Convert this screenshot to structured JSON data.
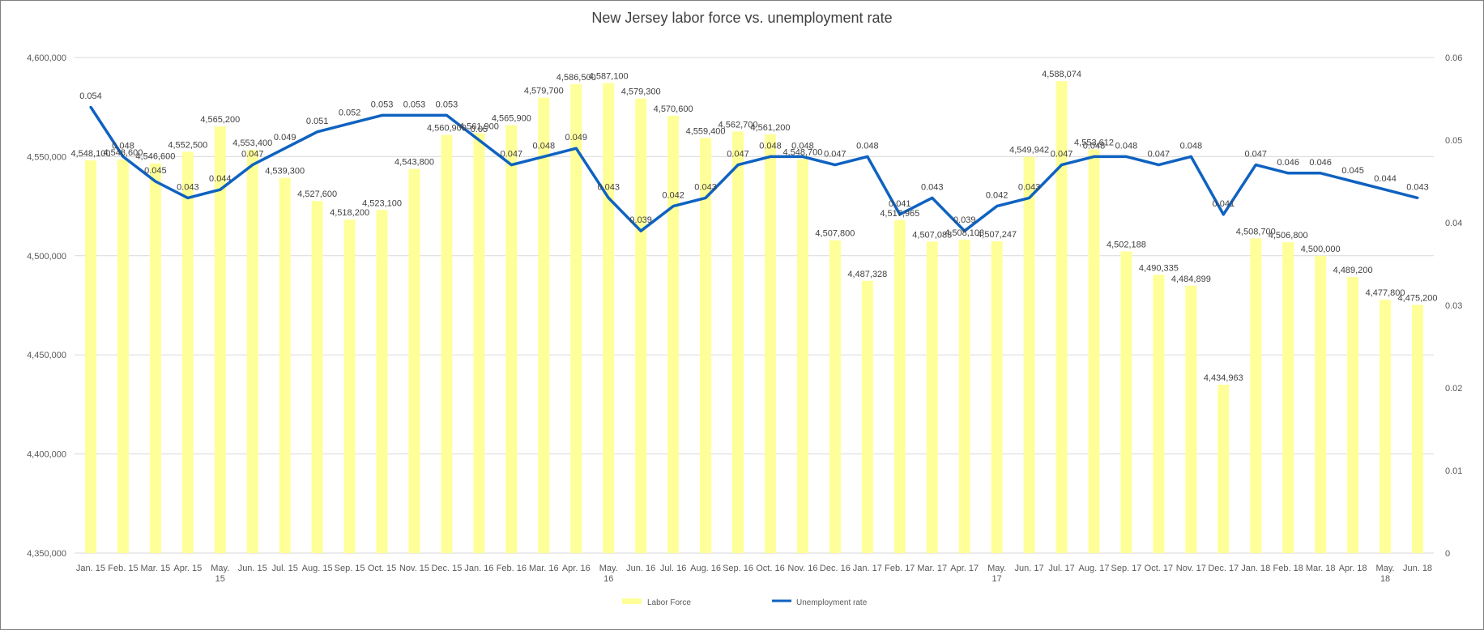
{
  "chart_data": {
    "type": "bar",
    "title": "New Jersey labor force vs. unemployment rate",
    "categories": [
      "Jan. 15",
      "Feb. 15",
      "Mar. 15",
      "Apr. 15",
      "May. 15",
      "Jun. 15",
      "Jul. 15",
      "Aug. 15",
      "Sep. 15",
      "Oct. 15",
      "Nov. 15",
      "Dec. 15",
      "Jan. 16",
      "Feb. 16",
      "Mar. 16",
      "Apr. 16",
      "May. 16",
      "Jun. 16",
      "Jul. 16",
      "Aug. 16",
      "Sep. 16",
      "Oct. 16",
      "Nov. 16",
      "Dec. 16",
      "Jan. 17",
      "Feb. 17",
      "Mar. 17",
      "Apr. 17",
      "May. 17",
      "Jun. 17",
      "Jul. 17",
      "Aug. 17",
      "Sep. 17",
      "Oct. 17",
      "Nov. 17",
      "Dec. 17",
      "Jan. 18",
      "Feb. 18",
      "Mar. 18",
      "Apr. 18",
      "May. 18",
      "Jun. 18"
    ],
    "series": [
      {
        "name": "Labor Force",
        "type": "bar",
        "axis": "left",
        "color": "#FFFF99",
        "values": [
          4548100,
          4548600,
          4546600,
          4552500,
          4565200,
          4553400,
          4539300,
          4527600,
          4518200,
          4523100,
          4543800,
          4560900,
          4561900,
          4565900,
          4579700,
          4586500,
          4587100,
          4579300,
          4570600,
          4559400,
          4562700,
          4561200,
          4548700,
          4507800,
          4487328,
          4517965,
          4507083,
          4508103,
          4507247,
          4549942,
          4588074,
          4553612,
          4502188,
          4490335,
          4484899,
          4434963,
          4508700,
          4506800,
          4500000,
          4489200,
          4477800,
          4475200
        ],
        "labels": [
          "4,548,100",
          "4,548,600",
          "4,546,600",
          "4,552,500",
          "4,565,200",
          "4,553,400",
          "4,539,300",
          "4,527,600",
          "4,518,200",
          "4,523,100",
          "4,543,800",
          "4,560,900",
          "4,561,900",
          "4,565,900",
          "4,579,700",
          "4,586,500",
          "4,587,100",
          "4,579,300",
          "4,570,600",
          "4,559,400",
          "4,562,700",
          "4,561,200",
          "4,548,700",
          "4,507,800",
          "4,487,328",
          "4,517,965",
          "4,507,083",
          "4,508,103",
          "4,507,247",
          "4,549,942",
          "4,588,074",
          "4,553,612",
          "4,502,188",
          "4,490,335",
          "4,484,899",
          "4,434,963",
          "4,508,700",
          "4,506,800",
          "4,500,000",
          "4,489,200",
          "4,477,800",
          "4,475,200"
        ]
      },
      {
        "name": "Unemployment rate",
        "type": "line",
        "axis": "right",
        "color": "#0F62C0",
        "values": [
          0.054,
          0.048,
          0.045,
          0.043,
          0.044,
          0.047,
          0.049,
          0.051,
          0.052,
          0.053,
          0.053,
          0.053,
          0.05,
          0.047,
          0.048,
          0.049,
          0.043,
          0.039,
          0.042,
          0.043,
          0.047,
          0.048,
          0.048,
          0.047,
          0.048,
          0.041,
          0.043,
          0.039,
          0.042,
          0.043,
          0.047,
          0.048,
          0.048,
          0.047,
          0.048,
          0.041,
          0.047,
          0.046,
          0.046,
          0.045,
          0.044,
          0.043
        ],
        "labels": [
          "0.054",
          "0.048",
          "0.045",
          "0.043",
          "0.044",
          "0.047",
          "0.049",
          "0.051",
          "0.052",
          "0.053",
          "0.053",
          "0.053",
          "0.05",
          "0.047",
          "0.048",
          "0.049",
          "0.043",
          "0.039",
          "0.042",
          "0.043",
          "0.047",
          "0.048",
          "0.048",
          "0.047",
          "0.048",
          "0.041",
          "0.043",
          "0.039",
          "0.042",
          "0.043",
          "0.047",
          "0.048",
          "0.048",
          "0.047",
          "0.048",
          "0.041",
          "0.047",
          "0.046",
          "0.046",
          "0.045",
          "0.044",
          "0.043"
        ]
      }
    ],
    "y_left": {
      "min": 4350000,
      "max": 4600000,
      "ticks": [
        4350000,
        4400000,
        4450000,
        4500000,
        4550000,
        4600000
      ],
      "tick_labels": [
        "4,350,000",
        "4,400,000",
        "4,450,000",
        "4,500,000",
        "4,550,000",
        "4,600,000"
      ]
    },
    "y_right": {
      "min": 0,
      "max": 0.06,
      "ticks": [
        0,
        0.01,
        0.02,
        0.03,
        0.04,
        0.05,
        0.06
      ],
      "tick_labels": [
        "0",
        "0.01",
        "0.02",
        "0.03",
        "0.04",
        "0.05",
        "0.06"
      ]
    },
    "grid": true,
    "legend": "bottom"
  }
}
